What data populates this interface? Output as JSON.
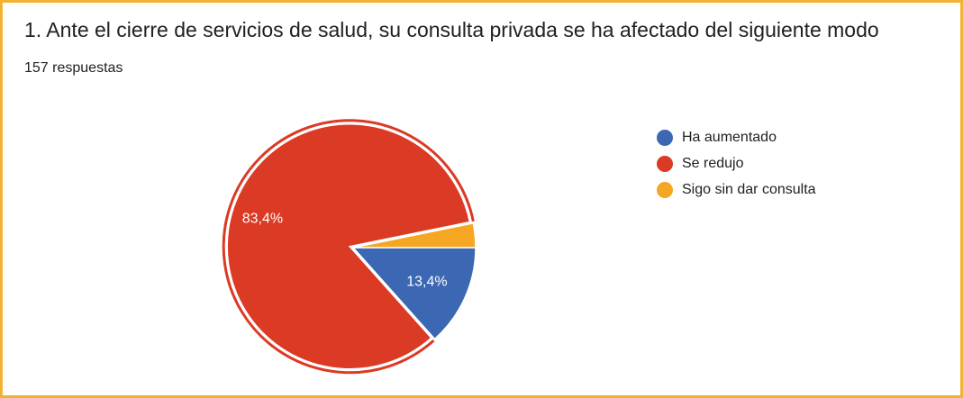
{
  "question": {
    "title": "1. Ante el cierre de servicios de salud, su consulta privada se ha afectado del siguiente modo",
    "responses": "157 respuestas"
  },
  "chart_data": {
    "type": "pie",
    "legend_position": "right",
    "highlighted_slice": "Se redujo",
    "slices": [
      {
        "label": "Ha aumentado",
        "value": 13.4,
        "value_label": "13,4%",
        "color": "#3c67b3"
      },
      {
        "label": "Se redujo",
        "value": 83.4,
        "value_label": "83,4%",
        "color": "#db3a24"
      },
      {
        "label": "Sigo sin dar consulta",
        "value": 3.2,
        "value_label": "",
        "color": "#f5a623"
      }
    ]
  }
}
